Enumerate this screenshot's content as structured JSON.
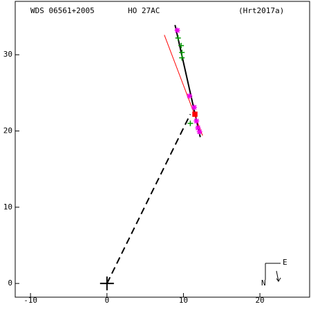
{
  "chart_data": {
    "type": "scatter",
    "title": "WDS 06561+2005",
    "subtitle": "HO  27AC",
    "reference": "(Hrt2017a)",
    "xlim": [
      -12,
      26.5
    ],
    "ylim": [
      -1.8,
      37
    ],
    "xticks": [
      -10,
      0,
      10,
      20
    ],
    "yticks": [
      0,
      10,
      20,
      30
    ],
    "lines": [
      {
        "color": "#000000",
        "dash": false,
        "x": [
          8.9,
          12.2
        ],
        "y": [
          33.9,
          19.2
        ]
      },
      {
        "color": "#ff0000",
        "dash": false,
        "x": [
          7.5,
          12.5
        ],
        "y": [
          32.6,
          19.4
        ]
      },
      {
        "color": "#000000",
        "dash": true,
        "x": [
          0,
          10.9
        ],
        "y": [
          0,
          22.2
        ]
      }
    ],
    "series": [
      {
        "color": "#009900",
        "marker": "plus",
        "x": [
          9.3,
          9.7,
          9.8,
          9.8,
          10.9
        ],
        "y": [
          32.2,
          31.2,
          30.3,
          29.6,
          21.0
        ]
      },
      {
        "color": "#ee00ee",
        "marker": "asterisk",
        "x": [
          9.2,
          10.8,
          11.4,
          11.7,
          11.9,
          12.1
        ],
        "y": [
          33.2,
          24.6,
          23.1,
          21.3,
          20.4,
          19.9
        ]
      },
      {
        "color": "#ff0000",
        "marker": "square",
        "x": [
          11.5
        ],
        "y": [
          22.2
        ]
      }
    ],
    "primary": {
      "x": 0,
      "y": 0
    }
  },
  "compass": {
    "north": "N",
    "east": "E"
  }
}
